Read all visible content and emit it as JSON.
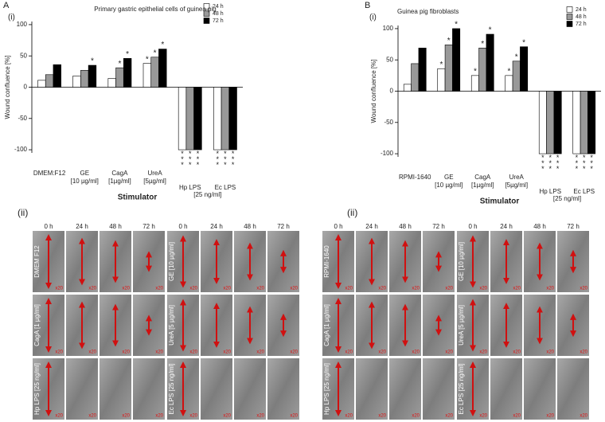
{
  "chart_data": [
    {
      "type": "bar",
      "panel_letter": "A",
      "panel_label": "(i)",
      "title": "Primary  gastric epithelial cells of guinea pig",
      "y_label": "Wound confluence [%]",
      "x_label": "Stimulator",
      "categories": [
        "DMEM:F12",
        "GE [10 µg/ml]",
        "CagA [1µg/ml]",
        "UreA [5µg/ml]",
        "Hp LPS",
        "Ec LPS"
      ],
      "group_label": "[25 ng/ml]",
      "ylim": [
        -105,
        105
      ],
      "yticks": [
        -100,
        -50,
        0,
        50,
        100
      ],
      "series": [
        {
          "name": "24 h",
          "color": "#ffffff",
          "values": [
            11,
            18,
            14,
            38,
            -100,
            -100
          ],
          "annotations": [
            null,
            null,
            null,
            "*",
            "***",
            "***"
          ]
        },
        {
          "name": "48 h",
          "color": "#999999",
          "values": [
            20,
            27,
            31,
            48,
            -100,
            -100
          ],
          "annotations": [
            null,
            null,
            "*",
            "*",
            "***",
            "***"
          ]
        },
        {
          "name": "72 h",
          "color": "#000000",
          "values": [
            36,
            35,
            46,
            61,
            -100,
            -100
          ],
          "annotations": [
            null,
            "*",
            "*",
            "*",
            "***",
            "***"
          ]
        }
      ]
    },
    {
      "type": "bar",
      "panel_letter": "B",
      "panel_label": "(i)",
      "title": "Guinea pig fibroblasts",
      "y_label": "Wound confluence [%]",
      "x_label": "Stimulator",
      "categories": [
        "RPMI-1640",
        "GE [10 µg/ml]",
        "CagA [1µg/ml]",
        "UreA [5µg/ml]",
        "Hp LPS",
        "Ec LPS"
      ],
      "group_label": "[25 ng/ml]",
      "ylim": [
        -105,
        105
      ],
      "yticks": [
        -100,
        -50,
        0,
        50,
        100
      ],
      "series": [
        {
          "name": "24 h",
          "color": "#ffffff",
          "values": [
            11,
            36,
            25,
            25,
            -100,
            -100
          ],
          "annotations": [
            null,
            "*",
            "*",
            "*",
            "***",
            "***"
          ]
        },
        {
          "name": "48 h",
          "color": "#999999",
          "values": [
            44,
            74,
            69,
            48,
            -100,
            -100
          ],
          "annotations": [
            null,
            "*",
            "*",
            "*",
            "***",
            "***"
          ]
        },
        {
          "name": "72 h",
          "color": "#000000",
          "values": [
            69,
            100,
            91,
            71,
            -100,
            -100
          ],
          "annotations": [
            null,
            "*",
            "*",
            "*",
            "***",
            "***"
          ]
        }
      ]
    }
  ],
  "panels": [
    {
      "label": "(ii)",
      "columns": [
        "0 h",
        "24 h",
        "48 h",
        "72 h"
      ],
      "magnification": "x20",
      "rows": [
        "DMEM F12",
        "GE [10 µg/ml]",
        "CagA [1 µg/ml]",
        "UreA [5 µg/ml]",
        "Hp LPS [25 ng/ml]",
        "Ec LPS [25 ng/ml]"
      ]
    },
    {
      "label": "(ii)",
      "columns": [
        "0 h",
        "24 h",
        "48 h",
        "72 h"
      ],
      "magnification": "x20",
      "rows": [
        "RPMI-1640",
        "GE [10 µg/ml]",
        "CagA [1 µg/ml]",
        "UreA [5 µg/ml]",
        "Hp LPS [25 ng/ml]",
        "Ec LPS [25 ng/ml]"
      ]
    }
  ]
}
